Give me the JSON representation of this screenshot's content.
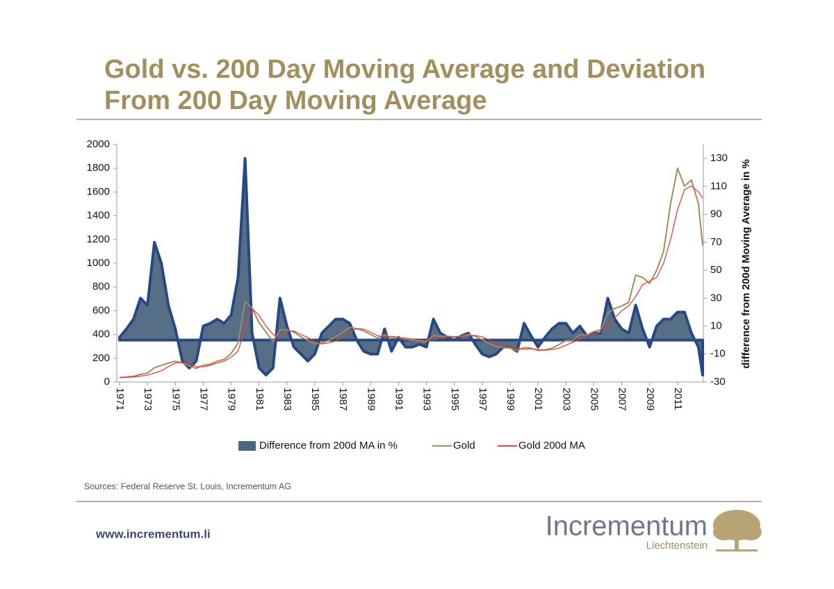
{
  "slide": {
    "title_lines": [
      "Gold vs. 200 Day Moving Average and Deviation",
      "From 200 Day Moving Average"
    ],
    "source": "Sources: Federal Reserve St. Louis, Incrementum AG",
    "footer_url": "www.incrementum.li",
    "logo": {
      "name": "Incrementum",
      "sub": "Liechtenstein"
    }
  },
  "chart_data": {
    "type": "line",
    "y2label": "difference from 200d Moving Average in %",
    "legend": "bottom",
    "x": [
      1971,
      1971.5,
      1972,
      1972.5,
      1973,
      1973.5,
      1974,
      1974.5,
      1975,
      1975.5,
      1976,
      1976.5,
      1977,
      1977.5,
      1978,
      1978.5,
      1979,
      1979.5,
      1980,
      1980.5,
      1981,
      1981.5,
      1982,
      1982.5,
      1983,
      1983.5,
      1984,
      1984.5,
      1985,
      1985.5,
      1986,
      1986.5,
      1987,
      1987.5,
      1988,
      1988.5,
      1989,
      1989.5,
      1990,
      1990.5,
      1991,
      1991.5,
      1992,
      1992.5,
      1993,
      1993.5,
      1994,
      1994.5,
      1995,
      1995.5,
      1996,
      1996.5,
      1997,
      1997.5,
      1998,
      1998.5,
      1999,
      1999.5,
      2000,
      2000.5,
      2001,
      2001.5,
      2002,
      2002.5,
      2003,
      2003.5,
      2004,
      2004.5,
      2005,
      2005.5,
      2006,
      2006.5,
      2007,
      2007.5,
      2008,
      2008.5,
      2009,
      2009.5,
      2010,
      2010.5,
      2011,
      2011.5,
      2012,
      2012.5,
      2012.8
    ],
    "series": [
      {
        "name": "Difference from 200d MA in %",
        "type": "area",
        "axis": "y2",
        "color": "#4d6780",
        "outline": "#1d3f7e",
        "values": [
          2,
          8,
          15,
          30,
          25,
          70,
          55,
          25,
          8,
          -15,
          -20,
          -15,
          10,
          12,
          15,
          12,
          18,
          45,
          130,
          5,
          -20,
          -25,
          -20,
          30,
          10,
          -5,
          -10,
          -15,
          -10,
          5,
          10,
          15,
          15,
          12,
          0,
          -8,
          -10,
          -10,
          8,
          -8,
          2,
          -5,
          -5,
          -3,
          -5,
          15,
          5,
          2,
          0,
          3,
          5,
          -3,
          -10,
          -12,
          -10,
          -5,
          -5,
          -8,
          12,
          3,
          -5,
          2,
          8,
          12,
          12,
          5,
          10,
          3,
          5,
          5,
          30,
          15,
          8,
          5,
          25,
          8,
          -5,
          10,
          15,
          15,
          20,
          20,
          5,
          -5,
          -25
        ]
      },
      {
        "name": "Gold",
        "type": "line",
        "color": "#a08c5a",
        "values": [
          38,
          42,
          48,
          65,
          75,
          120,
          140,
          160,
          175,
          160,
          135,
          115,
          140,
          150,
          175,
          190,
          240,
          330,
          680,
          620,
          500,
          420,
          340,
          440,
          440,
          420,
          380,
          350,
          320,
          330,
          350,
          380,
          420,
          460,
          450,
          430,
          400,
          370,
          400,
          370,
          375,
          360,
          350,
          345,
          340,
          390,
          385,
          385,
          380,
          385,
          400,
          385,
          355,
          325,
          300,
          290,
          285,
          265,
          290,
          285,
          265,
          270,
          285,
          315,
          350,
          350,
          400,
          395,
          425,
          440,
          580,
          620,
          640,
          670,
          900,
          880,
          830,
          940,
          1100,
          1500,
          1800,
          1650,
          1700,
          1500,
          1150
        ]
      },
      {
        "name": "Gold 200d MA",
        "type": "line",
        "color": "#e0413c",
        "values": [
          37,
          39,
          42,
          50,
          58,
          75,
          95,
          130,
          160,
          165,
          155,
          130,
          128,
          140,
          160,
          175,
          210,
          260,
          450,
          620,
          560,
          470,
          400,
          370,
          430,
          430,
          400,
          375,
          340,
          320,
          330,
          345,
          380,
          420,
          450,
          445,
          420,
          390,
          380,
          385,
          375,
          370,
          360,
          352,
          348,
          355,
          375,
          380,
          382,
          382,
          388,
          392,
          380,
          355,
          330,
          305,
          295,
          285,
          275,
          280,
          275,
          268,
          272,
          285,
          310,
          335,
          360,
          385,
          405,
          420,
          460,
          540,
          600,
          640,
          720,
          820,
          850,
          880,
          1000,
          1200,
          1450,
          1620,
          1650,
          1600,
          1550
        ]
      }
    ],
    "xlim": [
      1970.8,
      2012.85
    ],
    "xticks": [
      1971,
      1973,
      1975,
      1977,
      1979,
      1981,
      1983,
      1985,
      1987,
      1989,
      1991,
      1993,
      1995,
      1997,
      1999,
      2001,
      2003,
      2005,
      2007,
      2009,
      2011
    ],
    "ylim": [
      0,
      2000
    ],
    "yticks": [
      0,
      200,
      400,
      600,
      800,
      1000,
      1200,
      1400,
      1600,
      1800,
      2000
    ],
    "y2lim": [
      -30,
      140
    ],
    "y2ticks": [
      -30,
      -10,
      10,
      30,
      50,
      70,
      90,
      110,
      130
    ]
  }
}
